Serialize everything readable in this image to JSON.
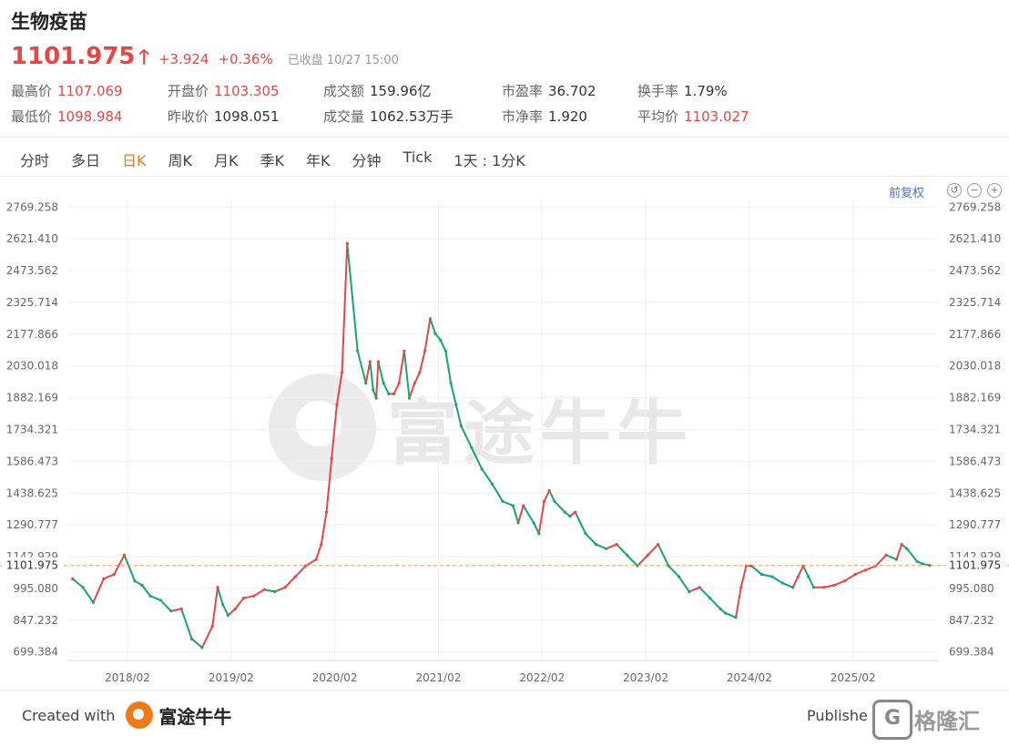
{
  "header": {
    "title": "生物疫苗",
    "price": "1101.975",
    "change": "+3.924",
    "change_pct": "+0.36%",
    "status": "已收盘 10/27 15:00"
  },
  "stats": [
    [
      {
        "label": "最高价",
        "value": "1107.069",
        "color": "red"
      },
      {
        "label": "开盘价",
        "value": "1103.305",
        "color": "red"
      },
      {
        "label": "成交额",
        "value": "159.96亿",
        "color": "black"
      },
      {
        "label": "市盈率",
        "value": "36.702",
        "color": "black"
      },
      {
        "label": "换手率",
        "value": "1.79%",
        "color": "black"
      }
    ],
    [
      {
        "label": "最低价",
        "value": "1098.984",
        "color": "red"
      },
      {
        "label": "昨收价",
        "value": "1098.051",
        "color": "black"
      },
      {
        "label": "成交量",
        "value": "1062.53万手",
        "color": "black"
      },
      {
        "label": "市净率",
        "value": "1.920",
        "color": "black"
      },
      {
        "label": "平均价",
        "value": "1103.027",
        "color": "red"
      }
    ]
  ],
  "tabs": [
    "分时",
    "多日",
    "日K",
    "周K",
    "月K",
    "季K",
    "年K",
    "分钟",
    "Tick",
    "1天 : 1分K"
  ],
  "active_tab": "日K",
  "toolbar": {
    "fq_label": "前复权",
    "icons": [
      "undo-icon",
      "zoom-out-icon",
      "zoom-in-icon"
    ]
  },
  "watermark": {
    "text": "富途牛牛"
  },
  "footer": {
    "created": "Created with",
    "brand": "富途牛牛",
    "publish": "Publishe",
    "gelonghui": "格隆汇",
    "gl_letter": "G"
  },
  "colors": {
    "up": "#e84545",
    "down": "#1aa36f",
    "accent": "#f07a1a",
    "ref_line": "#f09a5a"
  },
  "chart_data": {
    "type": "line",
    "style": "daily candlestick (approximated as close-price series)",
    "y_ticks": [
      "2769.258",
      "2621.410",
      "2473.562",
      "2325.714",
      "2177.866",
      "2030.018",
      "1882.169",
      "1734.321",
      "1586.473",
      "1438.625",
      "1290.777",
      "1142.929",
      "995.080",
      "847.232",
      "699.384"
    ],
    "ylim": [
      660,
      2800
    ],
    "x_ticks": [
      "2018/02",
      "2019/02",
      "2020/02",
      "2021/02",
      "2022/02",
      "2023/02",
      "2024/02",
      "2025/02"
    ],
    "x_tick_t": [
      2018.08,
      2019.08,
      2020.08,
      2021.08,
      2022.08,
      2023.08,
      2024.08,
      2025.08
    ],
    "xlim": [
      2017.5,
      2025.9
    ],
    "last_price": 1101.975,
    "last_label": "1101.975",
    "series": [
      {
        "t": [
          2017.55,
          2017.65,
          2017.75,
          2017.85,
          2017.95,
          2018.05,
          2018.15,
          2018.22,
          2018.3,
          2018.4,
          2018.5,
          2018.6,
          2018.7,
          2018.8,
          2018.9,
          2018.95,
          2019.0,
          2019.05,
          2019.12,
          2019.2,
          2019.3,
          2019.4,
          2019.5,
          2019.6,
          2019.7,
          2019.8,
          2019.9,
          2019.95,
          2020.0,
          2020.05,
          2020.1,
          2020.15,
          2020.2,
          2020.3,
          2020.38,
          2020.42,
          2020.45,
          2020.48,
          2020.5,
          2020.55,
          2020.6,
          2020.65,
          2020.7,
          2020.75,
          2020.8,
          2020.85,
          2020.9,
          2020.95,
          2021.0,
          2021.05,
          2021.1,
          2021.15,
          2021.2,
          2021.25,
          2021.3,
          2021.4,
          2021.5,
          2021.6,
          2021.7,
          2021.8,
          2021.85,
          2021.9,
          2022.0,
          2022.05,
          2022.1,
          2022.15,
          2022.2,
          2022.3,
          2022.35,
          2022.4,
          2022.5,
          2022.6,
          2022.7,
          2022.8,
          2022.9,
          2023.0,
          2023.1,
          2023.2,
          2023.3,
          2023.4,
          2023.5,
          2023.6,
          2023.7,
          2023.8,
          2023.85,
          2023.95,
          2024.0,
          2024.05,
          2024.1,
          2024.2,
          2024.3,
          2024.4,
          2024.5,
          2024.55,
          2024.6,
          2024.65,
          2024.7,
          2024.8,
          2024.9,
          2025.0,
          2025.1,
          2025.2,
          2025.3,
          2025.4,
          2025.5,
          2025.55,
          2025.6,
          2025.7,
          2025.75,
          2025.82
        ],
        "close": [
          1040,
          1000,
          930,
          1040,
          1060,
          1150,
          1030,
          1010,
          960,
          940,
          890,
          900,
          760,
          720,
          820,
          1000,
          920,
          870,
          900,
          950,
          960,
          990,
          980,
          1000,
          1050,
          1100,
          1130,
          1200,
          1350,
          1600,
          1850,
          2000,
          2600,
          2100,
          1950,
          2050,
          1920,
          1880,
          2050,
          1950,
          1900,
          1900,
          1950,
          2100,
          1880,
          1950,
          2000,
          2100,
          2250,
          2180,
          2150,
          2100,
          1950,
          1850,
          1750,
          1650,
          1550,
          1480,
          1400,
          1380,
          1300,
          1380,
          1300,
          1250,
          1400,
          1450,
          1400,
          1350,
          1330,
          1350,
          1250,
          1200,
          1180,
          1200,
          1150,
          1100,
          1150,
          1200,
          1100,
          1050,
          980,
          1000,
          950,
          900,
          880,
          860,
          1000,
          1100,
          1100,
          1060,
          1050,
          1020,
          1000,
          1050,
          1100,
          1050,
          1000,
          1000,
          1010,
          1030,
          1060,
          1080,
          1100,
          1150,
          1130,
          1200,
          1180,
          1120,
          1110,
          1101.975
        ]
      }
    ]
  }
}
